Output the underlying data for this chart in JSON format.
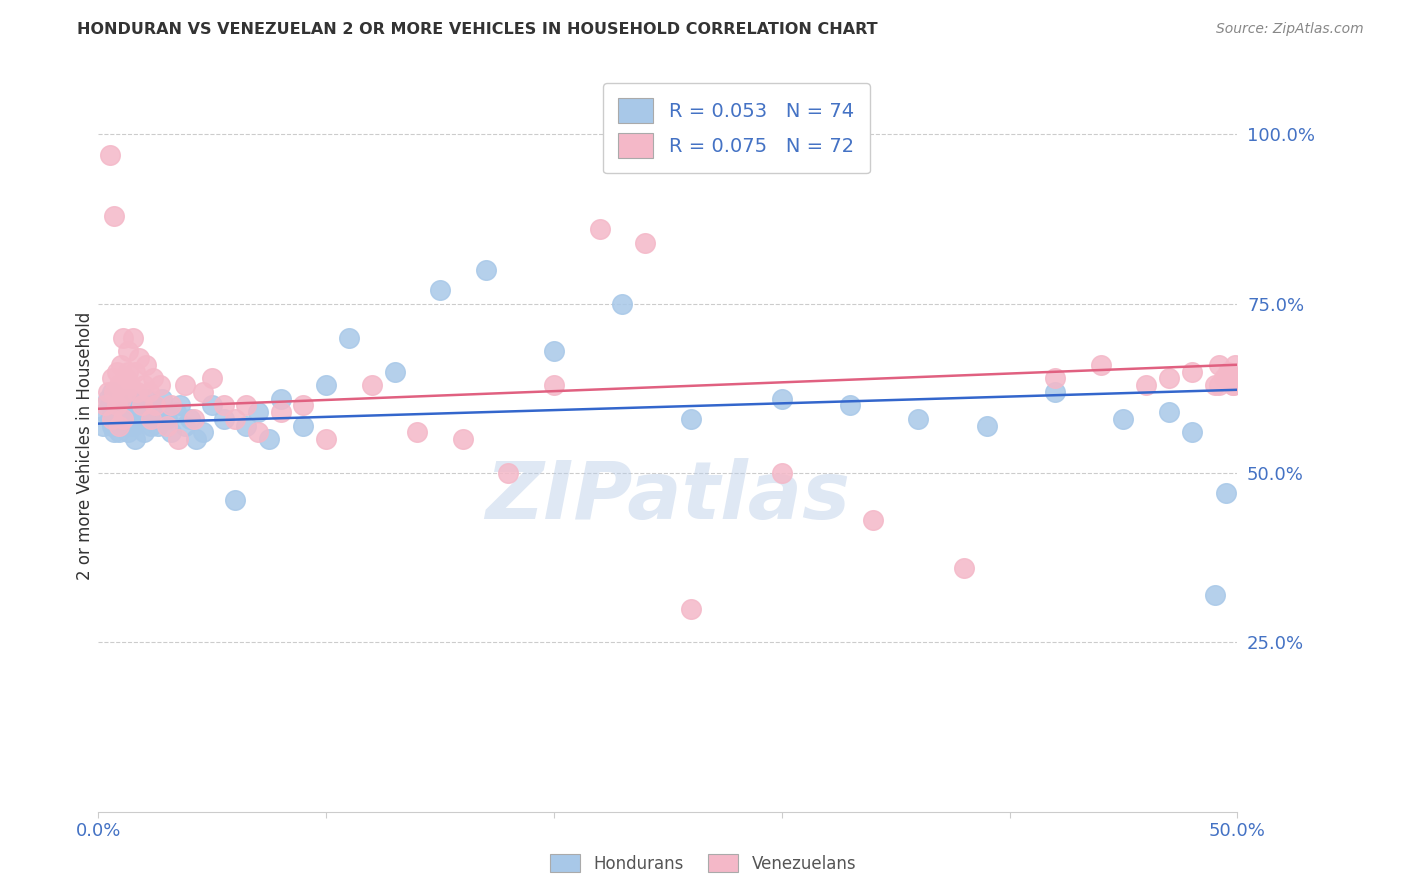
{
  "title": "HONDURAN VS VENEZUELAN 2 OR MORE VEHICLES IN HOUSEHOLD CORRELATION CHART",
  "source": "Source: ZipAtlas.com",
  "ylabel": "2 or more Vehicles in Household",
  "ytick_labels": [
    "100.0%",
    "75.0%",
    "50.0%",
    "25.0%"
  ],
  "ytick_values": [
    1.0,
    0.75,
    0.5,
    0.25
  ],
  "xlim": [
    0.0,
    0.5
  ],
  "ylim": [
    0.0,
    1.08
  ],
  "watermark": "ZIPatlas",
  "honduran_color": "#a8c8e8",
  "venezuelan_color": "#f4b8c8",
  "honduran_line_color": "#3366cc",
  "venezuelan_line_color": "#e06080",
  "title_color": "#333333",
  "source_color": "#888888",
  "background_color": "#ffffff",
  "grid_color": "#cccccc",
  "axis_label_color": "#4472c4",
  "legend_text_color": "#4472c4",
  "R_honduran": 0.053,
  "N_honduran": 74,
  "R_venezuelan": 0.075,
  "N_venezuelan": 72,
  "hx": [
    0.002,
    0.003,
    0.004,
    0.005,
    0.005,
    0.006,
    0.006,
    0.007,
    0.007,
    0.008,
    0.008,
    0.008,
    0.009,
    0.009,
    0.009,
    0.01,
    0.01,
    0.01,
    0.011,
    0.011,
    0.012,
    0.012,
    0.013,
    0.013,
    0.014,
    0.014,
    0.015,
    0.016,
    0.017,
    0.018,
    0.019,
    0.02,
    0.021,
    0.022,
    0.023,
    0.024,
    0.025,
    0.026,
    0.027,
    0.028,
    0.03,
    0.032,
    0.034,
    0.036,
    0.038,
    0.04,
    0.043,
    0.046,
    0.05,
    0.055,
    0.06,
    0.065,
    0.07,
    0.075,
    0.08,
    0.09,
    0.1,
    0.11,
    0.13,
    0.15,
    0.17,
    0.2,
    0.23,
    0.26,
    0.3,
    0.33,
    0.36,
    0.39,
    0.42,
    0.45,
    0.47,
    0.48,
    0.49,
    0.495
  ],
  "hy": [
    0.57,
    0.59,
    0.61,
    0.6,
    0.58,
    0.62,
    0.57,
    0.56,
    0.59,
    0.58,
    0.61,
    0.57,
    0.6,
    0.58,
    0.56,
    0.59,
    0.57,
    0.61,
    0.58,
    0.6,
    0.57,
    0.59,
    0.6,
    0.56,
    0.58,
    0.61,
    0.57,
    0.55,
    0.59,
    0.6,
    0.58,
    0.56,
    0.61,
    0.59,
    0.57,
    0.6,
    0.58,
    0.57,
    0.59,
    0.61,
    0.58,
    0.56,
    0.59,
    0.6,
    0.57,
    0.58,
    0.55,
    0.56,
    0.6,
    0.58,
    0.46,
    0.57,
    0.59,
    0.55,
    0.61,
    0.57,
    0.63,
    0.7,
    0.65,
    0.77,
    0.8,
    0.68,
    0.75,
    0.58,
    0.61,
    0.6,
    0.58,
    0.57,
    0.62,
    0.58,
    0.59,
    0.56,
    0.32,
    0.47
  ],
  "vx": [
    0.003,
    0.004,
    0.005,
    0.006,
    0.006,
    0.007,
    0.007,
    0.008,
    0.008,
    0.009,
    0.009,
    0.01,
    0.01,
    0.011,
    0.011,
    0.012,
    0.012,
    0.013,
    0.013,
    0.014,
    0.015,
    0.016,
    0.017,
    0.018,
    0.019,
    0.02,
    0.021,
    0.022,
    0.023,
    0.024,
    0.025,
    0.027,
    0.03,
    0.032,
    0.035,
    0.038,
    0.042,
    0.046,
    0.05,
    0.055,
    0.06,
    0.065,
    0.07,
    0.08,
    0.09,
    0.1,
    0.12,
    0.14,
    0.16,
    0.18,
    0.2,
    0.22,
    0.24,
    0.26,
    0.3,
    0.34,
    0.38,
    0.42,
    0.44,
    0.46,
    0.47,
    0.48,
    0.49,
    0.492,
    0.495,
    0.498,
    0.499,
    0.5,
    0.498,
    0.496,
    0.494,
    0.492
  ],
  "vy": [
    0.6,
    0.62,
    0.97,
    0.64,
    0.58,
    0.88,
    0.62,
    0.6,
    0.65,
    0.57,
    0.63,
    0.61,
    0.66,
    0.58,
    0.7,
    0.64,
    0.62,
    0.68,
    0.65,
    0.63,
    0.7,
    0.65,
    0.62,
    0.67,
    0.6,
    0.63,
    0.66,
    0.62,
    0.58,
    0.64,
    0.6,
    0.63,
    0.57,
    0.6,
    0.55,
    0.63,
    0.58,
    0.62,
    0.64,
    0.6,
    0.58,
    0.6,
    0.56,
    0.59,
    0.6,
    0.55,
    0.63,
    0.56,
    0.55,
    0.5,
    0.63,
    0.86,
    0.84,
    0.3,
    0.5,
    0.43,
    0.36,
    0.64,
    0.66,
    0.63,
    0.64,
    0.65,
    0.63,
    0.66,
    0.64,
    0.63,
    0.66,
    0.64,
    0.63,
    0.65,
    0.64,
    0.63
  ]
}
